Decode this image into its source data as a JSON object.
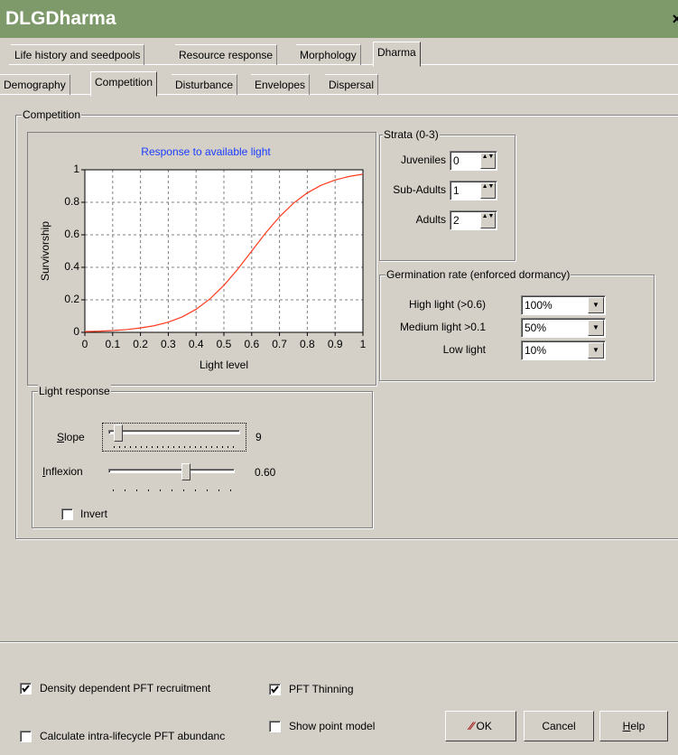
{
  "window": {
    "title": "DLGDharma"
  },
  "tabs_top": [
    "Life history and seedpools",
    "Resource response",
    "Morphology",
    "Dharma"
  ],
  "tabs_sub": [
    "Demography",
    "Competition",
    "Disturbance",
    "Envelopes",
    "Dispersal"
  ],
  "competition_group": "Competition",
  "chart_data": {
    "type": "line",
    "title": "Response to available light",
    "x_label": "Light level",
    "y_label": "Survivorship",
    "x": [
      0,
      0.05,
      0.1,
      0.15,
      0.2,
      0.25,
      0.3,
      0.35,
      0.4,
      0.45,
      0.5,
      0.55,
      0.6,
      0.65,
      0.7,
      0.75,
      0.8,
      0.85,
      0.9,
      0.95,
      1
    ],
    "values": [
      0.005,
      0.007,
      0.011,
      0.017,
      0.027,
      0.041,
      0.063,
      0.095,
      0.142,
      0.206,
      0.289,
      0.389,
      0.5,
      0.611,
      0.711,
      0.794,
      0.858,
      0.905,
      0.937,
      0.959,
      0.973
    ],
    "color": "#ff3b1f",
    "xlim": [
      0,
      1
    ],
    "ylim": [
      0,
      1
    ],
    "xticks": [
      0,
      0.1,
      0.2,
      0.3,
      0.4,
      0.5,
      0.6,
      0.7,
      0.8,
      0.9,
      1
    ],
    "yticks": [
      0,
      0.2,
      0.4,
      0.6,
      0.8,
      1
    ],
    "grid": true
  },
  "strata": {
    "label": "Strata (0-3)",
    "rows": [
      {
        "label": "Juveniles",
        "value": "0"
      },
      {
        "label": "Sub-Adults",
        "value": "1"
      },
      {
        "label": "Adults",
        "value": "2"
      }
    ]
  },
  "germination": {
    "label": "Germination rate (enforced dormancy)",
    "rows": [
      {
        "label": "High light (>0.6)",
        "value": "100%"
      },
      {
        "label": "Medium light >0.1",
        "value": "50%"
      },
      {
        "label": "Low light",
        "value": "10%"
      }
    ]
  },
  "light_response": {
    "label": "Light response",
    "slope_label": "Slope",
    "slope_value": "9",
    "inflexion_label": "Inflexion",
    "inflexion_value": "0.60",
    "invert": {
      "label": "Invert",
      "checked": false
    }
  },
  "bottom": {
    "checkboxes": [
      {
        "label": "Density dependent PFT recruitment",
        "checked": true
      },
      {
        "label": "Calculate intra-lifecycle PFT abundanc",
        "checked": false
      },
      {
        "label": "PFT Thinning",
        "checked": true
      },
      {
        "label": "Show point model",
        "checked": false
      }
    ],
    "buttons": [
      "OK",
      "Cancel",
      "Help"
    ]
  }
}
